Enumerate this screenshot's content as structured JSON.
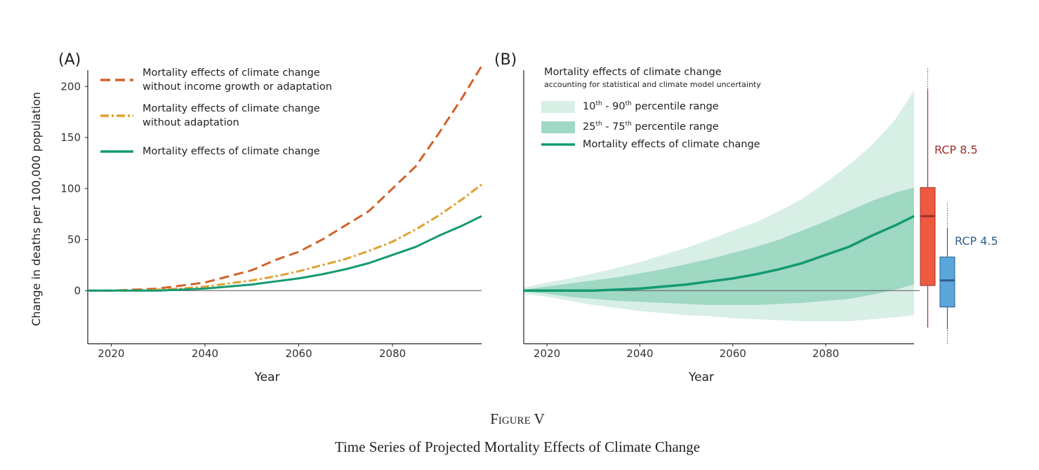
{
  "chart_data": [
    {
      "type": "line",
      "panel_label": "(A)",
      "xlabel": "Year",
      "ylabel": "Change in deaths per 100,000 population",
      "x": [
        2015,
        2020,
        2025,
        2030,
        2035,
        2040,
        2045,
        2050,
        2055,
        2060,
        2065,
        2070,
        2075,
        2080,
        2085,
        2090,
        2095,
        2099
      ],
      "xlim": [
        2015,
        2099
      ],
      "xticks": [
        2020,
        2040,
        2060,
        2080
      ],
      "ylim": [
        -52,
        216
      ],
      "yticks": [
        0,
        50,
        100,
        150,
        200
      ],
      "zero_line": true,
      "series": [
        {
          "name": "Mortality effects of climate change\nwithout income growth or adaptation",
          "color": "#d2622a",
          "dash": "14 7",
          "values": [
            0,
            0,
            1,
            2,
            5,
            8,
            14,
            20,
            30,
            38,
            50,
            64,
            78,
            100,
            122,
            155,
            190,
            220
          ]
        },
        {
          "name": "Mortality effects of climate change\nwithout adaptation",
          "color": "#e0a030",
          "dash": "12 4 3 4",
          "values": [
            0,
            0,
            0,
            1,
            2,
            4,
            7,
            10,
            14,
            19,
            25,
            31,
            39,
            48,
            60,
            74,
            90,
            104
          ]
        },
        {
          "name": "Mortality effects of climate change",
          "color": "#139a72",
          "dash": "none",
          "values": [
            0,
            0,
            0,
            0,
            1,
            2,
            4,
            6,
            9,
            12,
            16,
            21,
            27,
            35,
            43,
            54,
            64,
            73
          ]
        }
      ]
    },
    {
      "type": "band",
      "panel_label": "(B)",
      "xlabel": "Year",
      "legend_title": "Mortality effects of climate change",
      "legend_subtitle": "accounting for statistical and climate model uncertainty",
      "x": [
        2015,
        2020,
        2025,
        2030,
        2035,
        2040,
        2045,
        2050,
        2055,
        2060,
        2065,
        2070,
        2075,
        2080,
        2085,
        2090,
        2095,
        2099
      ],
      "xlim": [
        2015,
        2099
      ],
      "xticks": [
        2020,
        2040,
        2060,
        2080
      ],
      "ylim": [
        -52,
        216
      ],
      "zero_line": true,
      "bands": [
        {
          "name": "10th - 90th percentile range",
          "color": "#d8efe6",
          "low": [
            -3,
            -6,
            -10,
            -14,
            -17,
            -20,
            -22,
            -24,
            -25,
            -27,
            -28,
            -29,
            -30,
            -30,
            -30,
            -28,
            -26,
            -24
          ],
          "high": [
            3,
            8,
            12,
            17,
            22,
            28,
            35,
            42,
            50,
            59,
            67,
            78,
            90,
            106,
            123,
            143,
            168,
            196
          ]
        },
        {
          "name": "25th - 75th percentile range",
          "color": "#9fd8c3",
          "low": [
            -1,
            -3,
            -6,
            -8,
            -10,
            -11,
            -12,
            -13,
            -14,
            -14,
            -14,
            -13,
            -12,
            -10,
            -8,
            -4,
            1,
            6
          ],
          "high": [
            1,
            4,
            7,
            10,
            13,
            17,
            21,
            26,
            31,
            37,
            43,
            50,
            59,
            68,
            78,
            88,
            96,
            101
          ]
        }
      ],
      "series": [
        {
          "name": "Mortality effects of climate change",
          "color": "#139a72",
          "values": [
            0,
            0,
            0,
            0,
            1,
            2,
            4,
            6,
            9,
            12,
            16,
            21,
            27,
            35,
            43,
            54,
            64,
            73
          ]
        }
      ],
      "boxes": [
        {
          "name": "RCP 8.5",
          "color": "#ee5a40",
          "label_color": "#a0302a",
          "range_low": -36,
          "whisker_low": -36,
          "q1": 5,
          "median": 73,
          "q3": 101,
          "whisker_high": 197,
          "range_high": 218
        },
        {
          "name": "RCP 4.5",
          "color": "#5aa5dc",
          "label_color": "#2e5f8a",
          "range_low": -52,
          "whisker_low": -38,
          "q1": -16,
          "median": 10,
          "q3": 33,
          "whisker_high": 61,
          "range_high": 86
        }
      ]
    }
  ],
  "figure": {
    "label": "Figure V",
    "caption": "Time Series of Projected Mortality Effects of Climate Change"
  }
}
